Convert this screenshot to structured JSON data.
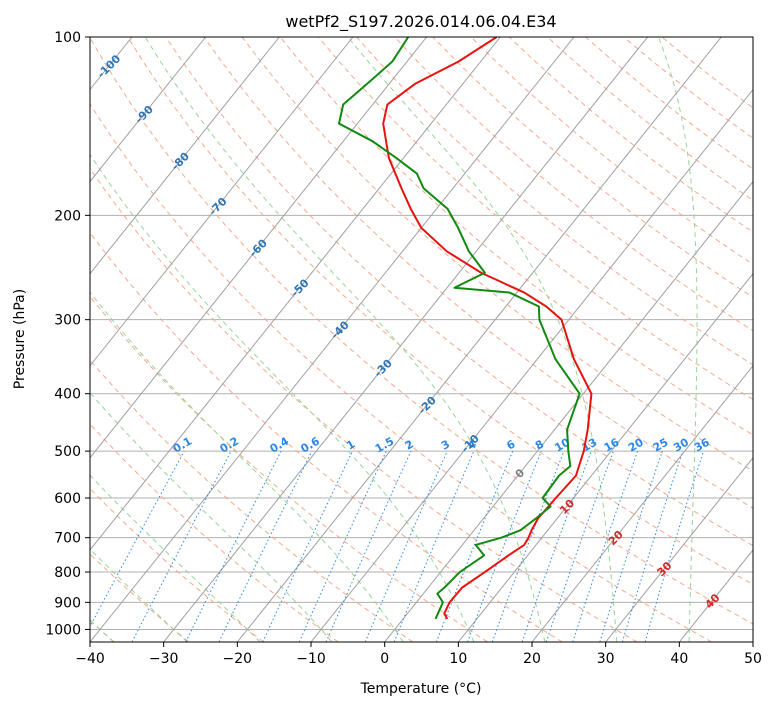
{
  "chart_data": {
    "type": "line",
    "subtype": "skew-t log-p",
    "title": "wetPf2_S197.2026.014.06.04.E34",
    "xlabel": "Temperature (°C)",
    "ylabel": "Pressure (hPa)",
    "xlim": [
      -40,
      50
    ],
    "ylim": [
      1050,
      100
    ],
    "x_ticks": [
      -40,
      -30,
      -20,
      -10,
      0,
      10,
      20,
      30,
      40,
      50
    ],
    "y_ticks": [
      100,
      200,
      300,
      400,
      500,
      600,
      700,
      800,
      900,
      1000
    ],
    "grid": true,
    "series": [
      {
        "name": "Temperature",
        "color": "#e8120e",
        "points": [
          [
            6.0,
            960
          ],
          [
            5.0,
            940
          ],
          [
            4.5,
            900
          ],
          [
            4.6,
            850
          ],
          [
            6.0,
            800
          ],
          [
            7.4,
            750
          ],
          [
            8.4,
            720
          ],
          [
            8.2,
            700
          ],
          [
            7.8,
            680
          ],
          [
            7.4,
            650
          ],
          [
            7.6,
            600
          ],
          [
            7.9,
            550
          ],
          [
            6.3,
            500
          ],
          [
            4.5,
            460
          ],
          [
            1.1,
            400
          ],
          [
            -5.0,
            350
          ],
          [
            -11.0,
            300
          ],
          [
            -14.5,
            285
          ],
          [
            -19.0,
            270
          ],
          [
            -27.0,
            250
          ],
          [
            -34.0,
            230
          ],
          [
            -40.0,
            210
          ],
          [
            -43.5,
            195
          ],
          [
            -47.0,
            180
          ],
          [
            -52.0,
            160
          ],
          [
            -56.5,
            140
          ],
          [
            -58.0,
            130
          ],
          [
            -56.5,
            120
          ],
          [
            -53.0,
            110
          ],
          [
            -50.5,
            100
          ]
        ]
      },
      {
        "name": "Dewpoint",
        "color": "#108a10",
        "points": [
          [
            4.4,
            960
          ],
          [
            3.6,
            900
          ],
          [
            1.9,
            870
          ],
          [
            2.2,
            850
          ],
          [
            2.6,
            800
          ],
          [
            4.1,
            750
          ],
          [
            1.8,
            720
          ],
          [
            4.5,
            700
          ],
          [
            6.3,
            680
          ],
          [
            7.1,
            650
          ],
          [
            7.8,
            620
          ],
          [
            5.8,
            600
          ],
          [
            5.6,
            550
          ],
          [
            6.1,
            530
          ],
          [
            4.2,
            500
          ],
          [
            1.7,
            460
          ],
          [
            -0.5,
            400
          ],
          [
            -7.5,
            350
          ],
          [
            -14.0,
            300
          ],
          [
            -15.5,
            285
          ],
          [
            -21.0,
            270
          ],
          [
            -29.0,
            265
          ],
          [
            -26.5,
            250
          ],
          [
            -31.0,
            230
          ],
          [
            -35.0,
            210
          ],
          [
            -38.5,
            195
          ],
          [
            -44.0,
            180
          ],
          [
            -46.5,
            170
          ],
          [
            -51.0,
            160
          ],
          [
            -56.0,
            150
          ],
          [
            -62.5,
            140
          ],
          [
            -64.0,
            130
          ],
          [
            -63.0,
            120
          ],
          [
            -62.0,
            110
          ],
          [
            -62.5,
            100
          ]
        ]
      }
    ],
    "isotherms": {
      "color": "#a0a0a0",
      "values": [
        -150,
        -140,
        -130,
        -120,
        -110,
        -100,
        -90,
        -80,
        -70,
        -60,
        -50,
        -40,
        -30,
        -20,
        -10,
        0,
        10,
        20,
        30,
        40,
        50
      ]
    },
    "dry_adiabats": {
      "color": "#f6a98f",
      "theta_values": [
        -40,
        -30,
        -20,
        -10,
        0,
        10,
        20,
        30,
        40,
        50,
        60,
        70,
        80,
        90,
        100,
        110,
        120,
        130,
        140,
        150,
        160,
        170,
        180,
        190,
        200
      ]
    },
    "moist_adiabats": {
      "color": "#9ad49a",
      "start_temps_1000hPa": [
        -40,
        -30,
        -20,
        -10,
        0,
        10,
        20,
        30,
        40
      ]
    },
    "mixing_ratio_lines": {
      "color": "#2b88e6",
      "top_pressure": 500,
      "labels": [
        "0.1",
        "0.2",
        "0.4",
        "0.6",
        "1",
        "1.5",
        "2",
        "3",
        "4",
        "6",
        "8",
        "10",
        "13",
        "16",
        "20",
        "25",
        "30",
        "36"
      ],
      "values": [
        0.1,
        0.2,
        0.4,
        0.6,
        1,
        1.5,
        2,
        3,
        4,
        6,
        8,
        10,
        13,
        16,
        20,
        25,
        30,
        36
      ]
    },
    "blue_isotherm_labels": {
      "color": "#2f75b5",
      "items": [
        {
          "text": "-100",
          "T": -100,
          "p": 112
        },
        {
          "text": "-90",
          "T": -90,
          "p": 135
        },
        {
          "text": "-80",
          "T": -80,
          "p": 162
        },
        {
          "text": "-70",
          "T": -70,
          "p": 193
        },
        {
          "text": "-60",
          "T": -60,
          "p": 227
        },
        {
          "text": "-50",
          "T": -50,
          "p": 265
        },
        {
          "text": "-40",
          "T": -40,
          "p": 312
        },
        {
          "text": "-30",
          "T": -30,
          "p": 362
        },
        {
          "text": "-20",
          "T": -20,
          "p": 418
        },
        {
          "text": "-10",
          "T": -10,
          "p": 485
        }
      ]
    },
    "red_isotherm_labels": {
      "color": "#d62728",
      "items": [
        {
          "text": "10",
          "T": 10,
          "p": 620
        },
        {
          "text": "20",
          "T": 20,
          "p": 700
        },
        {
          "text": "30",
          "T": 30,
          "p": 790
        },
        {
          "text": "40",
          "T": 40,
          "p": 895
        }
      ]
    },
    "gray_isotherm_labels": {
      "color": "#7f7f7f",
      "items": [
        {
          "text": "0",
          "T": 0,
          "p": 545
        }
      ]
    }
  }
}
